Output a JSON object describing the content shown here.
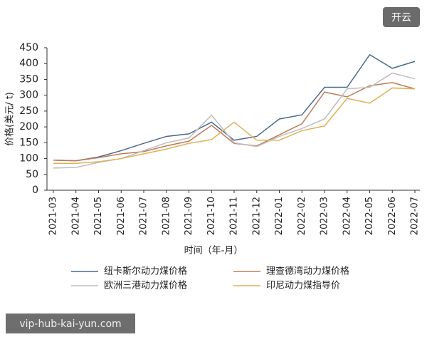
{
  "chart_data": {
    "type": "line",
    "x_label": "时间（年-月）",
    "y_label": "价格(美元/ t)",
    "categories": [
      "2021-03",
      "2021-04",
      "2021-05",
      "2021-06",
      "2021-07",
      "2021-08",
      "2021-09",
      "2021-10",
      "2021-11",
      "2021-12",
      "2022-01",
      "2022-02",
      "2022-03",
      "2022-04",
      "2022-05",
      "2022-06",
      "2022-07"
    ],
    "series": [
      {
        "name": "纽卡斯尔动力煤价格",
        "color": "#4d6a8c",
        "values": [
          95,
          93,
          105,
          125,
          148,
          170,
          178,
          215,
          158,
          170,
          225,
          238,
          325,
          325,
          428,
          385,
          407
        ]
      },
      {
        "name": "理查德湾动力煤价格",
        "color": "#c07a58",
        "values": [
          95,
          93,
          103,
          115,
          122,
          140,
          155,
          205,
          148,
          140,
          175,
          210,
          310,
          295,
          330,
          340,
          320
        ]
      },
      {
        "name": "欧洲三港动力煤价格",
        "color": "#bdbdbd",
        "values": [
          70,
          72,
          88,
          100,
          125,
          150,
          165,
          237,
          150,
          138,
          170,
          195,
          225,
          320,
          325,
          370,
          352
        ]
      },
      {
        "name": "印尼动力煤指导价",
        "color": "#e2b055",
        "values": [
          85,
          85,
          90,
          100,
          115,
          130,
          148,
          160,
          215,
          158,
          158,
          188,
          203,
          290,
          275,
          323,
          320
        ]
      }
    ],
    "ylim": [
      0,
      450
    ],
    "yticks": [
      0,
      50,
      100,
      150,
      200,
      250,
      300,
      350,
      400,
      450
    ],
    "grid": false
  },
  "badge": "开云",
  "watermark": "vip-hub-kai-yun.com"
}
